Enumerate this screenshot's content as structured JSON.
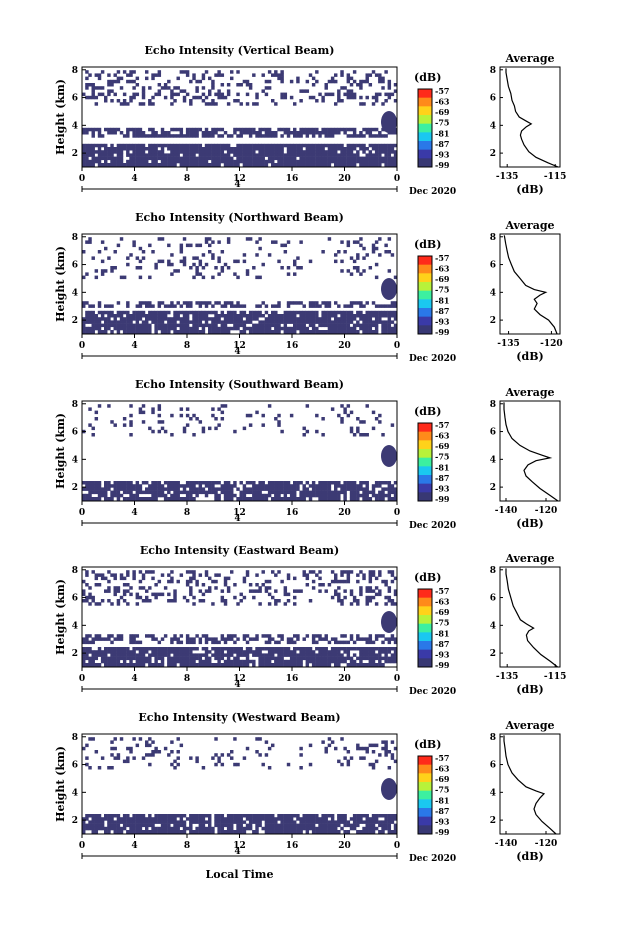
{
  "chart_data": {
    "type": "heatmap",
    "xlabel": "Local Time",
    "colorbar": {
      "unit": "(dB)",
      "ticks": [
        "-57",
        "-63",
        "-69",
        "-75",
        "-81",
        "-87",
        "-93",
        "-99"
      ],
      "colors": [
        "#ff2a1a",
        "#ff8a1a",
        "#ffd21a",
        "#b8f23a",
        "#3cf0a0",
        "#1ac8f0",
        "#2a78e8",
        "#3a3aa8",
        "#383874"
      ]
    },
    "panels": [
      {
        "title": "Echo Intensity (Vertical Beam)",
        "ylabel": "Height (km)",
        "yticks": [
          "2",
          "4",
          "6",
          "8"
        ],
        "xticks": [
          "0",
          "4",
          "8",
          "12",
          "16",
          "20",
          "0"
        ],
        "date_marker": "4",
        "date_label": "Dec 2020",
        "avg_title": "Average",
        "avg_xticks": [
          "-135",
          "-115"
        ],
        "avg_xlim": [
          -138,
          -113
        ],
        "avg_xunit": "(dB)",
        "avg_profile": [
          [
            -113.8,
            1
          ],
          [
            -118,
            1.3
          ],
          [
            -123,
            1.7
          ],
          [
            -126,
            2.1
          ],
          [
            -128,
            2.6
          ],
          [
            -129,
            3.0
          ],
          [
            -129.5,
            3.3
          ],
          [
            -129,
            3.6
          ],
          [
            -127,
            3.9
          ],
          [
            -125,
            4.1
          ],
          [
            -127,
            4.3
          ],
          [
            -130,
            4.6
          ],
          [
            -131.5,
            5.0
          ],
          [
            -132,
            5.4
          ],
          [
            -133,
            5.8
          ],
          [
            -133.5,
            6.3
          ],
          [
            -134.5,
            6.8
          ],
          [
            -135,
            7.3
          ],
          [
            -135.5,
            7.8
          ],
          [
            -135.5,
            8.1
          ]
        ]
      },
      {
        "title": "Echo Intensity (Northward Beam)",
        "ylabel": "Height (km)",
        "yticks": [
          "2",
          "4",
          "6",
          "8"
        ],
        "xticks": [
          "0",
          "4",
          "8",
          "12",
          "16",
          "20",
          "0"
        ],
        "date_marker": "4",
        "date_label": "Dec 2020",
        "avg_title": "Average",
        "avg_xticks": [
          "-135",
          "-120"
        ],
        "avg_xlim": [
          -138,
          -117
        ],
        "avg_xunit": "(dB)",
        "avg_profile": [
          [
            -118,
            1
          ],
          [
            -119,
            1.5
          ],
          [
            -121,
            2.0
          ],
          [
            -124,
            2.4
          ],
          [
            -126,
            2.8
          ],
          [
            -125,
            3.2
          ],
          [
            -126,
            3.5
          ],
          [
            -124,
            3.8
          ],
          [
            -122,
            4.0
          ],
          [
            -126,
            4.2
          ],
          [
            -129,
            4.5
          ],
          [
            -131,
            5.0
          ],
          [
            -133,
            5.5
          ],
          [
            -134,
            6.0
          ],
          [
            -135,
            6.5
          ],
          [
            -135.5,
            7.0
          ],
          [
            -136,
            7.5
          ],
          [
            -136.5,
            8.1
          ]
        ]
      },
      {
        "title": "Echo Intensity (Southward Beam)",
        "ylabel": "Height (km)",
        "yticks": [
          "2",
          "4",
          "6",
          "8"
        ],
        "xticks": [
          "0",
          "4",
          "8",
          "12",
          "16",
          "20",
          "0"
        ],
        "date_marker": "4",
        "date_label": "Dec 2020",
        "avg_title": "Average",
        "avg_xticks": [
          "-140",
          "-120"
        ],
        "avg_xlim": [
          -143,
          -113
        ],
        "avg_xunit": "(dB)",
        "avg_profile": [
          [
            -114,
            1
          ],
          [
            -118,
            1.4
          ],
          [
            -123,
            1.9
          ],
          [
            -127,
            2.4
          ],
          [
            -130,
            2.8
          ],
          [
            -131,
            3.2
          ],
          [
            -129,
            3.6
          ],
          [
            -125,
            3.9
          ],
          [
            -118,
            4.1
          ],
          [
            -122,
            4.3
          ],
          [
            -128,
            4.6
          ],
          [
            -133,
            5.0
          ],
          [
            -137,
            5.5
          ],
          [
            -139,
            6.0
          ],
          [
            -140,
            6.5
          ],
          [
            -140.5,
            7.0
          ],
          [
            -141,
            7.6
          ],
          [
            -141,
            8.1
          ]
        ]
      },
      {
        "title": "Echo Intensity (Eastward Beam)",
        "ylabel": "Height (km)",
        "yticks": [
          "2",
          "4",
          "6",
          "8"
        ],
        "xticks": [
          "0",
          "4",
          "8",
          "12",
          "16",
          "20",
          "0"
        ],
        "date_marker": "4",
        "date_label": "Dec 2020",
        "avg_title": "Average",
        "avg_xticks": [
          "-135",
          "-115"
        ],
        "avg_xlim": [
          -138,
          -113
        ],
        "avg_xunit": "(dB)",
        "avg_profile": [
          [
            -114,
            1
          ],
          [
            -117,
            1.4
          ],
          [
            -121,
            1.9
          ],
          [
            -124,
            2.4
          ],
          [
            -126.5,
            2.9
          ],
          [
            -127,
            3.3
          ],
          [
            -126,
            3.6
          ],
          [
            -124,
            3.8
          ],
          [
            -127,
            4.1
          ],
          [
            -129.5,
            4.4
          ],
          [
            -131,
            4.9
          ],
          [
            -132.5,
            5.4
          ],
          [
            -133.5,
            6.0
          ],
          [
            -134.5,
            6.6
          ],
          [
            -135,
            7.2
          ],
          [
            -135.5,
            7.7
          ],
          [
            -135.5,
            8.1
          ]
        ]
      },
      {
        "title": "Echo Intensity (Westward Beam)",
        "ylabel": "Height (km)",
        "yticks": [
          "2",
          "4",
          "6",
          "8"
        ],
        "xticks": [
          "0",
          "4",
          "8",
          "12",
          "16",
          "20",
          "0"
        ],
        "date_marker": "4",
        "date_label": "Dec 2020",
        "avg_title": "Average",
        "avg_xticks": [
          "-140",
          "-120"
        ],
        "avg_xlim": [
          -143,
          -113
        ],
        "avg_xunit": "(dB)",
        "avg_profile": [
          [
            -115,
            1
          ],
          [
            -118,
            1.4
          ],
          [
            -122,
            1.9
          ],
          [
            -125,
            2.4
          ],
          [
            -126,
            2.8
          ],
          [
            -125,
            3.2
          ],
          [
            -123,
            3.6
          ],
          [
            -121,
            3.9
          ],
          [
            -125,
            4.1
          ],
          [
            -130,
            4.4
          ],
          [
            -134,
            4.9
          ],
          [
            -137,
            5.4
          ],
          [
            -139,
            6.0
          ],
          [
            -140,
            6.6
          ],
          [
            -140.5,
            7.2
          ],
          [
            -141,
            7.7
          ],
          [
            -141,
            8.1
          ]
        ]
      }
    ],
    "heatmap_profile": {
      "note_levels": "echo filled where present",
      "panels": [
        {
          "bands": [
            [
              1,
              2.6,
              0.9
            ],
            [
              3.2,
              3.8,
              0.7
            ],
            [
              5.4,
              8,
              0.35
            ]
          ]
        },
        {
          "bands": [
            [
              1,
              2.6,
              0.85
            ],
            [
              2.9,
              3.4,
              0.55
            ],
            [
              5.0,
              8,
              0.18
            ]
          ]
        },
        {
          "bands": [
            [
              1,
              2.4,
              0.8
            ],
            [
              5.6,
              8,
              0.12
            ]
          ]
        },
        {
          "bands": [
            [
              1,
              2.3,
              0.85
            ],
            [
              2.6,
              3.4,
              0.5
            ],
            [
              5.4,
              8,
              0.3
            ]
          ]
        },
        {
          "bands": [
            [
              1,
              2.3,
              0.85
            ],
            [
              5.6,
              8,
              0.15
            ]
          ]
        }
      ]
    }
  }
}
